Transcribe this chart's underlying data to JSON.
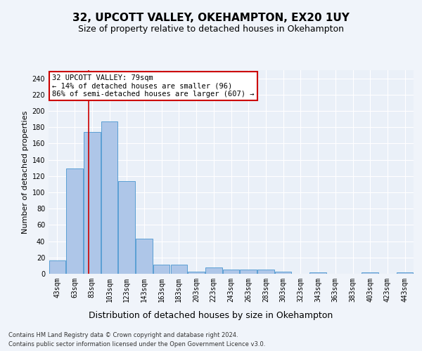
{
  "title1": "32, UPCOTT VALLEY, OKEHAMPTON, EX20 1UY",
  "title2": "Size of property relative to detached houses in Okehampton",
  "xlabel": "Distribution of detached houses by size in Okehampton",
  "ylabel": "Number of detached properties",
  "categories": [
    "43sqm",
    "63sqm",
    "83sqm",
    "103sqm",
    "123sqm",
    "143sqm",
    "163sqm",
    "183sqm",
    "203sqm",
    "223sqm",
    "243sqm",
    "263sqm",
    "283sqm",
    "303sqm",
    "323sqm",
    "343sqm",
    "363sqm",
    "383sqm",
    "403sqm",
    "423sqm",
    "443sqm"
  ],
  "values": [
    16,
    129,
    174,
    187,
    114,
    43,
    11,
    11,
    3,
    8,
    5,
    5,
    5,
    3,
    0,
    2,
    0,
    0,
    2,
    0,
    2
  ],
  "bar_color": "#aec6e8",
  "bar_edge_color": "#5a9fd4",
  "vline_x": 1.8,
  "vline_color": "#cc0000",
  "annotation_line1": "32 UPCOTT VALLEY: 79sqm",
  "annotation_line2": "← 14% of detached houses are smaller (96)",
  "annotation_line3": "86% of semi-detached houses are larger (607) →",
  "annotation_box_color": "#ffffff",
  "annotation_box_edge": "#cc0000",
  "ylim": [
    0,
    250
  ],
  "yticks": [
    0,
    20,
    40,
    60,
    80,
    100,
    120,
    140,
    160,
    180,
    200,
    220,
    240
  ],
  "footer1": "Contains HM Land Registry data © Crown copyright and database right 2024.",
  "footer2": "Contains public sector information licensed under the Open Government Licence v3.0.",
  "bg_color": "#eaf0f8",
  "grid_color": "#ffffff",
  "fig_bg_color": "#f0f4fa",
  "title1_fontsize": 11,
  "title2_fontsize": 9,
  "xlabel_fontsize": 9,
  "ylabel_fontsize": 8,
  "tick_fontsize": 7,
  "annotation_fontsize": 7.5,
  "footer_fontsize": 6
}
